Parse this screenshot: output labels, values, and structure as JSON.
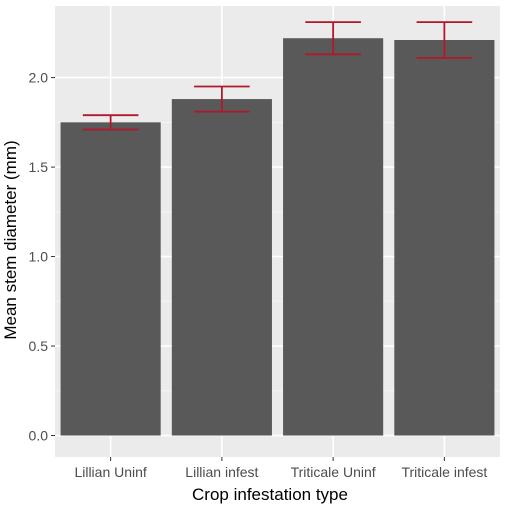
{
  "chart_data": {
    "type": "bar",
    "title": "",
    "xlabel": "Crop infestation type",
    "ylabel": "Mean stem diameter (mm)",
    "categories": [
      "Lillian Uninf",
      "Lillian infest",
      "Triticale Uninf",
      "Triticale infest"
    ],
    "values": [
      1.75,
      1.88,
      2.22,
      2.21
    ],
    "error_low": [
      1.71,
      1.81,
      2.13,
      2.11
    ],
    "error_high": [
      1.79,
      1.95,
      2.31,
      2.31
    ],
    "ylim": [
      -0.12,
      2.4
    ],
    "yticks": [
      0.0,
      0.5,
      1.0,
      1.5,
      2.0
    ],
    "ytick_labels": [
      "0.0",
      "0.5",
      "1.0",
      "1.5",
      "2.0"
    ],
    "grid": true,
    "legend": "none",
    "colors": {
      "bar": "#595959",
      "error_bar": "#b2182b",
      "panel_background": "#ebebeb",
      "grid_major": "#ffffff",
      "grid_minor": "#f5f5f5",
      "tick_mark": "#333333"
    }
  }
}
